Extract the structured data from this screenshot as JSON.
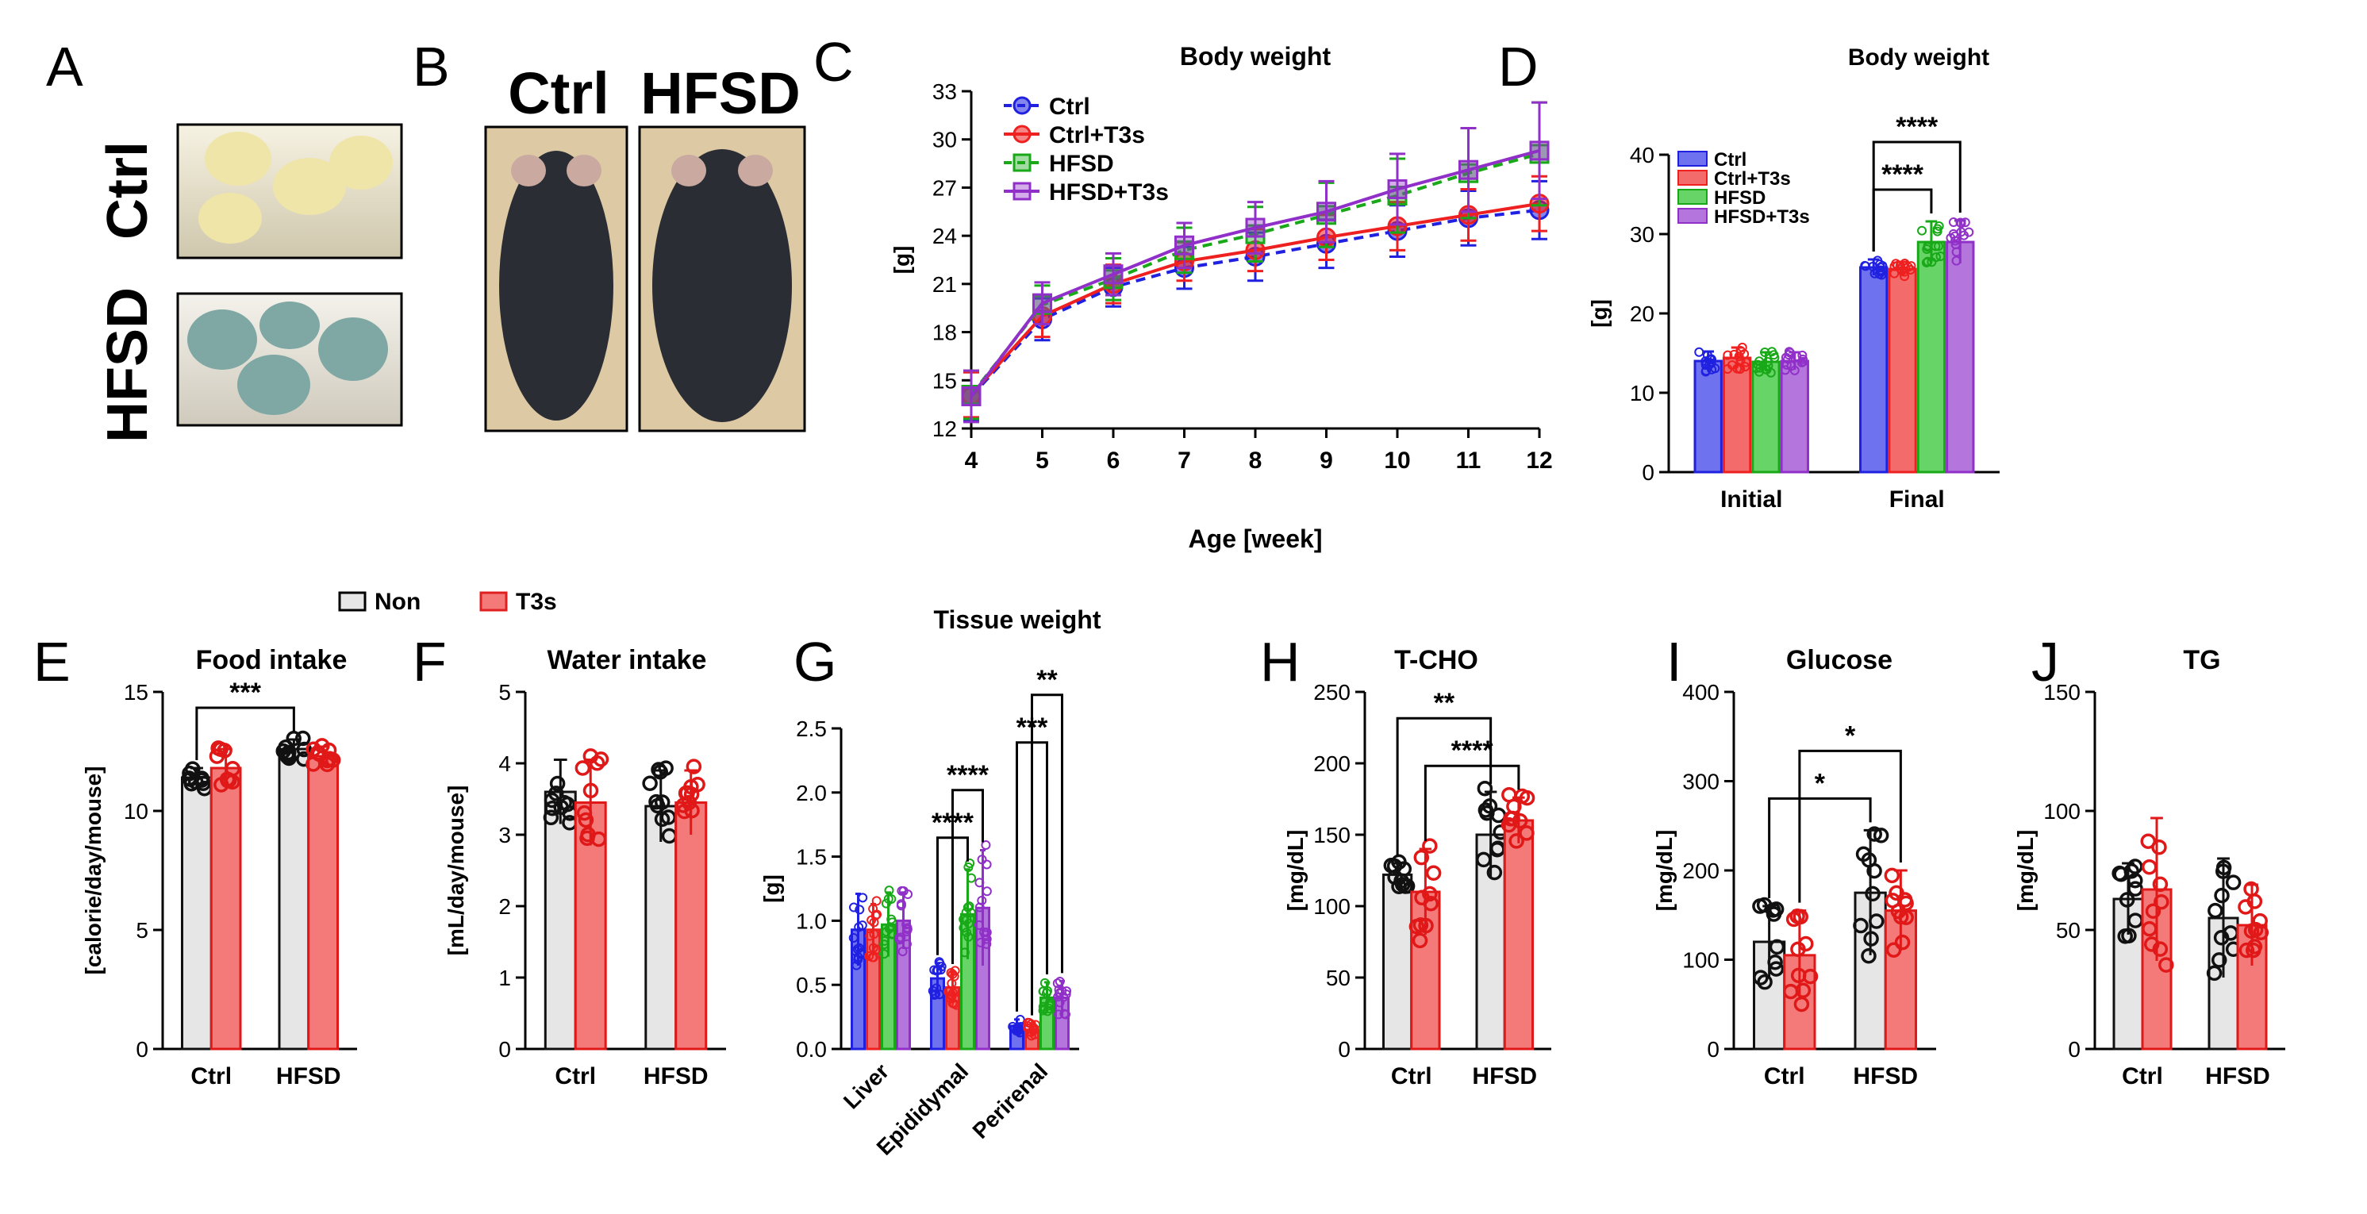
{
  "colors": {
    "ctrl": "#2020e0",
    "ctrl_t3s": "#ee2020",
    "hfsd": "#18a818",
    "hfsd_t3s": "#9030c8",
    "non_fill": "#e6e6e6",
    "t3s_fill": "#f47a7a",
    "food_yellow": "#efe5a8",
    "food_blue": "#7fa7a3",
    "mouse": "#2a2d33",
    "photo_bg": "#ddc9a4"
  },
  "panels": {
    "A": {
      "letter": "A",
      "label_ctrl": "Ctrl",
      "label_hfsd": "HFSD"
    },
    "B": {
      "letter": "B",
      "label_ctrl": "Ctrl",
      "label_hfsd": "HFSD"
    },
    "C": {
      "letter": "C"
    },
    "D": {
      "letter": "D"
    },
    "E": {
      "letter": "E"
    },
    "F": {
      "letter": "F"
    },
    "G": {
      "letter": "G"
    },
    "H": {
      "letter": "H"
    },
    "I": {
      "letter": "I"
    },
    "J": {
      "letter": "J"
    }
  },
  "legend_non_t3s": {
    "non": "Non",
    "t3s": "T3s"
  },
  "chart_data": [
    {
      "id": "C",
      "type": "line",
      "title": "Body weight",
      "xlabel": "Age [week]",
      "ylabel": "[g]",
      "x": [
        4,
        5,
        6,
        7,
        8,
        9,
        10,
        11,
        12
      ],
      "xlim": [
        4,
        12
      ],
      "ylim": [
        12,
        33
      ],
      "yticks": [
        12,
        15,
        18,
        21,
        24,
        27,
        30,
        33
      ],
      "legend_position": "top-left",
      "series": [
        {
          "name": "Ctrl",
          "color_key": "ctrl",
          "marker": "circle",
          "dashed": true,
          "values": [
            14.0,
            18.8,
            20.8,
            22.0,
            22.7,
            23.5,
            24.3,
            25.1,
            25.6
          ],
          "err": [
            1.5,
            1.3,
            1.2,
            1.3,
            1.5,
            1.5,
            1.6,
            1.7,
            1.8
          ]
        },
        {
          "name": "Ctrl+T3s",
          "color_key": "ctrl_t3s",
          "marker": "circle",
          "dashed": false,
          "values": [
            14.1,
            19.0,
            21.0,
            22.4,
            23.1,
            23.9,
            24.6,
            25.3,
            26.0
          ],
          "err": [
            1.4,
            1.3,
            1.2,
            1.2,
            1.3,
            1.4,
            1.5,
            1.6,
            1.7
          ]
        },
        {
          "name": "HFSD",
          "color_key": "hfsd",
          "marker": "square",
          "dashed": true,
          "values": [
            14.1,
            19.7,
            21.3,
            23.1,
            24.1,
            25.3,
            26.5,
            27.9,
            29.1
          ],
          "err": [
            1.5,
            1.2,
            1.3,
            1.4,
            1.7,
            2.0,
            2.3,
            2.8,
            3.2
          ]
        },
        {
          "name": "HFSD+T3s",
          "color_key": "hfsd_t3s",
          "marker": "square",
          "dashed": false,
          "values": [
            14.0,
            19.8,
            21.6,
            23.4,
            24.5,
            25.5,
            26.9,
            28.1,
            29.3
          ],
          "err": [
            1.6,
            1.3,
            1.3,
            1.4,
            1.6,
            1.9,
            2.2,
            2.6,
            3.0
          ]
        }
      ]
    },
    {
      "id": "D",
      "type": "bar",
      "title": "Body weight",
      "ylabel": "[g]",
      "categories": [
        "Initial",
        "Final"
      ],
      "ylim": [
        0,
        40
      ],
      "yticks": [
        0,
        10,
        20,
        30,
        40
      ],
      "legend_position": "top-left",
      "series": [
        {
          "name": "Ctrl",
          "color_key": "ctrl",
          "values": [
            14.0,
            25.8
          ],
          "err": [
            1.2,
            1.0
          ]
        },
        {
          "name": "Ctrl+T3s",
          "color_key": "ctrl_t3s",
          "values": [
            14.4,
            25.6
          ],
          "err": [
            1.3,
            0.9
          ]
        },
        {
          "name": "HFSD",
          "color_key": "hfsd",
          "values": [
            13.9,
            29.0
          ],
          "err": [
            1.2,
            2.6
          ]
        },
        {
          "name": "HFSD+T3s",
          "color_key": "hfsd_t3s",
          "values": [
            14.0,
            29.0
          ],
          "err": [
            1.1,
            2.7
          ]
        }
      ],
      "significance": [
        {
          "label": "****",
          "from": [
            1,
            0
          ],
          "to": [
            1,
            2
          ]
        },
        {
          "label": "****",
          "from": [
            1,
            0
          ],
          "to": [
            1,
            3
          ]
        }
      ]
    },
    {
      "id": "E",
      "type": "bar",
      "title": "Food intake",
      "ylabel": "[calorie/day/mouse]",
      "categories": [
        "Ctrl",
        "HFSD"
      ],
      "ylim": [
        0,
        15
      ],
      "yticks": [
        0,
        5,
        10,
        15
      ],
      "series": [
        {
          "name": "Non",
          "color_key": "non_fill",
          "values": [
            11.4,
            12.6
          ],
          "err": [
            0.4,
            0.4
          ]
        },
        {
          "name": "T3s",
          "color_key": "t3s_fill",
          "values": [
            11.8,
            12.3
          ],
          "err": [
            0.8,
            0.4
          ]
        }
      ],
      "significance": [
        {
          "label": "***",
          "from": [
            0,
            0
          ],
          "to": [
            1,
            0
          ]
        }
      ]
    },
    {
      "id": "F",
      "type": "bar",
      "title": "Water intake",
      "ylabel": "[mL/day/mouse]",
      "categories": [
        "Ctrl",
        "HFSD"
      ],
      "ylim": [
        0,
        5
      ],
      "yticks": [
        0,
        1,
        2,
        3,
        4,
        5
      ],
      "series": [
        {
          "name": "Non",
          "color_key": "non_fill",
          "values": [
            3.6,
            3.4
          ],
          "err": [
            0.45,
            0.5
          ]
        },
        {
          "name": "T3s",
          "color_key": "t3s_fill",
          "values": [
            3.45,
            3.45
          ],
          "err": [
            0.6,
            0.45
          ]
        }
      ],
      "significance": []
    },
    {
      "id": "G",
      "type": "bar",
      "title": "Tissue weight",
      "ylabel": "[g]",
      "categories": [
        "Liver",
        "Epididymal",
        "Perirenal"
      ],
      "ylim": [
        0,
        2.5
      ],
      "yticks": [
        0.0,
        0.5,
        1.0,
        1.5,
        2.0,
        2.5
      ],
      "series": [
        {
          "name": "Ctrl",
          "color_key": "ctrl",
          "values": [
            0.93,
            0.55,
            0.18
          ],
          "err": [
            0.28,
            0.12,
            0.05
          ]
        },
        {
          "name": "Ctrl+T3s",
          "color_key": "ctrl_t3s",
          "values": [
            0.93,
            0.48,
            0.15
          ],
          "err": [
            0.2,
            0.12,
            0.05
          ]
        },
        {
          "name": "HFSD",
          "color_key": "hfsd",
          "values": [
            0.97,
            1.05,
            0.4
          ],
          "err": [
            0.25,
            0.35,
            0.12
          ]
        },
        {
          "name": "HFSD+T3s",
          "color_key": "hfsd_t3s",
          "values": [
            1.0,
            1.1,
            0.4
          ],
          "err": [
            0.22,
            0.45,
            0.13
          ]
        }
      ],
      "significance": [
        {
          "label": "****",
          "from": [
            1,
            0
          ],
          "to": [
            1,
            2
          ]
        },
        {
          "label": "****",
          "from": [
            1,
            1
          ],
          "to": [
            1,
            3
          ]
        },
        {
          "label": "***",
          "from": [
            2,
            0
          ],
          "to": [
            2,
            2
          ]
        },
        {
          "label": "**",
          "from": [
            2,
            1
          ],
          "to": [
            2,
            3
          ]
        }
      ]
    },
    {
      "id": "H",
      "type": "bar",
      "title": "T-CHO",
      "ylabel": "[mg/dL]",
      "categories": [
        "Ctrl",
        "HFSD"
      ],
      "ylim": [
        0,
        250
      ],
      "yticks": [
        0,
        50,
        100,
        150,
        200,
        250
      ],
      "series": [
        {
          "name": "Non",
          "color_key": "non_fill",
          "values": [
            122,
            150
          ],
          "err": [
            8,
            30
          ]
        },
        {
          "name": "T3s",
          "color_key": "t3s_fill",
          "values": [
            110,
            160
          ],
          "err": [
            30,
            16
          ]
        }
      ],
      "significance": [
        {
          "label": "****",
          "from": [
            0,
            1
          ],
          "to": [
            1,
            1
          ]
        },
        {
          "label": "**",
          "from": [
            0,
            0
          ],
          "to": [
            1,
            0
          ]
        }
      ]
    },
    {
      "id": "I",
      "type": "bar",
      "title": "Glucose",
      "ylabel": "[mg/dL]",
      "categories": [
        "Ctrl",
        "HFSD"
      ],
      "ylim": [
        0,
        400
      ],
      "yticks": [
        0,
        100,
        200,
        300,
        400
      ],
      "series": [
        {
          "name": "Non",
          "color_key": "non_fill",
          "values": [
            120,
            175
          ],
          "err": [
            40,
            70
          ]
        },
        {
          "name": "T3s",
          "color_key": "t3s_fill",
          "values": [
            105,
            155
          ],
          "err": [
            50,
            45
          ]
        }
      ],
      "significance": [
        {
          "label": "*",
          "from": [
            0,
            0
          ],
          "to": [
            1,
            0
          ]
        },
        {
          "label": "*",
          "from": [
            0,
            1
          ],
          "to": [
            1,
            1
          ]
        }
      ]
    },
    {
      "id": "J",
      "type": "bar",
      "title": "TG",
      "ylabel": "[mg/dL]",
      "categories": [
        "Ctrl",
        "HFSD"
      ],
      "ylim": [
        0,
        150
      ],
      "yticks": [
        0,
        50,
        100,
        150
      ],
      "series": [
        {
          "name": "Non",
          "color_key": "non_fill",
          "values": [
            63,
            55
          ],
          "err": [
            15,
            25
          ]
        },
        {
          "name": "T3s",
          "color_key": "t3s_fill",
          "values": [
            67,
            52
          ],
          "err": [
            30,
            17
          ]
        }
      ],
      "significance": []
    }
  ]
}
